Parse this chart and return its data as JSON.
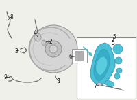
{
  "bg_color": "#f0f0eb",
  "fig_bg": "#f0f0eb",
  "white": "#ffffff",
  "highlight": "#4bbfd6",
  "highlight_dark": "#2a9ab5",
  "gray_line": "#aaaaaa",
  "dark_line": "#666666",
  "label_color": "#222222",
  "part_gray": "#c8c8c8",
  "part_gray2": "#b0b0b0",
  "box_border": "#888888",
  "label_fs": 5.5,
  "lw": 0.7
}
